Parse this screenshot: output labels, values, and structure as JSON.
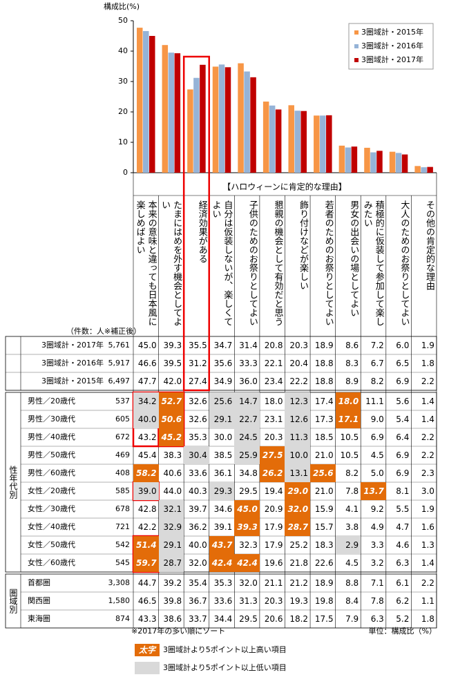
{
  "chart_data": {
    "type": "bar",
    "ylabel": "構成比(%)",
    "categories": [
      "本来の意味と違っても日本風に楽しめばよい",
      "たまにはめを外す機会としてよい",
      "経済効果がある",
      "自分は仮装しないが、楽しくてよい",
      "子供のためのお祭りとしてよい",
      "懇親の機会として有効だと思う",
      "飾り付けなどが楽しい",
      "若者のためのお祭りとしてよい",
      "男女の出会いの場としてよい",
      "積極的に仮装して参加して楽しみたい",
      "大人のためのお祭りとしてよい",
      "その他の肯定的な理由"
    ],
    "series": [
      {
        "name": "3圏域計・2015年",
        "color": "#f79646",
        "values": [
          47.7,
          42,
          27.4,
          34.9,
          36,
          23.4,
          22.2,
          18.8,
          8.9,
          8.2,
          6.9,
          2.2
        ],
        "value_labels": [
          "47.7",
          "42.0",
          "27.4",
          "34.9",
          "36.0",
          "23.4",
          "22.2",
          "18.8",
          "8.9",
          "8.2",
          "6.9",
          "2.2"
        ]
      },
      {
        "name": "3圏域計・2016年",
        "color": "#95b3d7",
        "values": [
          46.6,
          39.5,
          31.2,
          35.6,
          33.3,
          22.1,
          20.4,
          18.8,
          8.3,
          6.7,
          6.5,
          1.8
        ],
        "value_labels": [
          "46.6",
          "39.5",
          "31.2",
          "35.6",
          "33.3",
          "22.1",
          "20.4",
          "18.8",
          "8.3",
          "6.7",
          "6.5",
          "1.8"
        ]
      },
      {
        "name": "3圏域計・2017年",
        "color": "#c00000",
        "values": [
          45,
          39.3,
          35.5,
          34.7,
          31.4,
          20.8,
          20.3,
          18.9,
          8.6,
          7.2,
          6,
          1.9
        ],
        "value_labels": [
          "45.0",
          "39.3",
          "35.5",
          "34.7",
          "31.4",
          "20.8",
          "20.3",
          "18.9",
          "8.6",
          "7.2",
          "6.0",
          "1.9"
        ]
      }
    ],
    "ylim": [
      0,
      50
    ],
    "yticks": [
      0,
      10,
      20,
      30,
      40,
      50
    ],
    "legend": "upper right"
  },
  "table": {
    "title": "【ハロウィーンに肯定的な理由】",
    "count_header": "（件数：人※補正後）",
    "total_counts": [
      "6,497",
      "5,917",
      "5,761"
    ],
    "groups": [
      {
        "label": "性年代別",
        "rows": [
          {
            "label": "男性／20歳代",
            "count": "537",
            "values": [
              "34.2",
              "52.7",
              "32.6",
              "25.6",
              "14.7",
              "18.0",
              "12.3",
              "17.4",
              "18.0",
              "11.1",
              "5.6",
              "1.4"
            ],
            "cell_colors": [
              "#d9d9d9",
              "#e36c09",
              null,
              "#d9d9d9",
              "#d9d9d9",
              null,
              "#d9d9d9",
              null,
              "#e36c09",
              null,
              null,
              null
            ]
          },
          {
            "label": "男性／30歳代",
            "count": "605",
            "values": [
              "40.0",
              "50.6",
              "32.6",
              "29.1",
              "22.7",
              "23.1",
              "12.6",
              "17.3",
              "17.1",
              "9.0",
              "5.4",
              "1.4"
            ],
            "cell_colors": [
              "#d9d9d9",
              "#e36c09",
              null,
              "#d9d9d9",
              "#d9d9d9",
              null,
              "#d9d9d9",
              null,
              "#e36c09",
              null,
              null,
              null
            ]
          },
          {
            "label": "男性／40歳代",
            "count": "672",
            "values": [
              "43.2",
              "45.2",
              "35.3",
              "30.0",
              "24.5",
              "20.3",
              "11.3",
              "18.5",
              "10.5",
              "6.9",
              "6.4",
              "2.2"
            ],
            "cell_colors": [
              null,
              "#e36c09",
              null,
              null,
              "#d9d9d9",
              null,
              "#d9d9d9",
              null,
              null,
              null,
              null,
              null
            ]
          },
          {
            "label": "男性／50歳代",
            "count": "469",
            "values": [
              "45.4",
              "38.3",
              "30.4",
              "38.5",
              "25.9",
              "27.5",
              "10.0",
              "21.0",
              "10.5",
              "4.5",
              "6.9",
              "2.2"
            ],
            "cell_colors": [
              null,
              null,
              "#d9d9d9",
              null,
              "#d9d9d9",
              "#e36c09",
              "#d9d9d9",
              null,
              null,
              null,
              null,
              null
            ]
          },
          {
            "label": "男性／60歳代",
            "count": "408",
            "values": [
              "58.2",
              "40.6",
              "33.6",
              "36.1",
              "34.8",
              "26.2",
              "13.1",
              "25.6",
              "8.2",
              "5.0",
              "6.9",
              "2.3"
            ],
            "cell_colors": [
              "#e36c09",
              null,
              null,
              null,
              null,
              "#e36c09",
              "#d9d9d9",
              "#e36c09",
              null,
              null,
              null,
              null
            ]
          },
          {
            "label": "女性／20歳代",
            "count": "585",
            "values": [
              "39.0",
              "44.0",
              "40.3",
              "29.3",
              "29.5",
              "19.4",
              "29.0",
              "21.0",
              "7.8",
              "13.7",
              "8.1",
              "3.0"
            ],
            "cell_colors": [
              "#d9d9d9",
              null,
              null,
              "#d9d9d9",
              null,
              null,
              "#e36c09",
              null,
              null,
              "#e36c09",
              null,
              null
            ]
          },
          {
            "label": "女性／30歳代",
            "count": "678",
            "values": [
              "42.8",
              "32.1",
              "39.7",
              "34.6",
              "45.0",
              "20.9",
              "32.0",
              "15.9",
              "4.1",
              "9.2",
              "5.5",
              "1.9"
            ],
            "cell_colors": [
              null,
              "#d9d9d9",
              null,
              null,
              "#e36c09",
              null,
              "#e36c09",
              null,
              null,
              null,
              null,
              null
            ]
          },
          {
            "label": "女性／40歳代",
            "count": "721",
            "values": [
              "42.2",
              "32.9",
              "36.2",
              "39.1",
              "39.3",
              "17.9",
              "28.7",
              "15.7",
              "3.8",
              "4.9",
              "4.7",
              "1.6"
            ],
            "cell_colors": [
              null,
              "#d9d9d9",
              null,
              null,
              "#e36c09",
              null,
              "#e36c09",
              null,
              null,
              null,
              null,
              null
            ]
          },
          {
            "label": "女性／50歳代",
            "count": "542",
            "values": [
              "51.4",
              "29.1",
              "40.0",
              "43.7",
              "32.3",
              "17.9",
              "25.2",
              "18.3",
              "2.9",
              "3.3",
              "4.6",
              "1.3"
            ],
            "cell_colors": [
              "#e36c09",
              "#d9d9d9",
              null,
              "#e36c09",
              null,
              null,
              null,
              null,
              "#d9d9d9",
              null,
              null,
              null
            ]
          },
          {
            "label": "女性／60歳代",
            "count": "545",
            "values": [
              "59.7",
              "28.7",
              "32.0",
              "42.4",
              "42.4",
              "19.6",
              "21.8",
              "22.6",
              "4.5",
              "3.2",
              "6.3",
              "1.4"
            ],
            "cell_colors": [
              "#e36c09",
              "#d9d9d9",
              null,
              "#e36c09",
              "#e36c09",
              null,
              null,
              null,
              null,
              null,
              null,
              null
            ]
          }
        ]
      },
      {
        "label": "圏域別",
        "rows": [
          {
            "label": "首都圏",
            "count": "3,308",
            "values": [
              "44.7",
              "39.2",
              "35.4",
              "35.3",
              "32.0",
              "21.1",
              "21.2",
              "18.9",
              "8.8",
              "7.1",
              "6.1",
              "2.2"
            ]
          },
          {
            "label": "関西圏",
            "count": "1,580",
            "values": [
              "46.5",
              "39.8",
              "36.7",
              "33.6",
              "31.3",
              "20.3",
              "19.3",
              "19.8",
              "8.4",
              "7.8",
              "6.2",
              "1.1"
            ]
          },
          {
            "label": "東海圏",
            "count": "874",
            "values": [
              "43.3",
              "38.6",
              "33.7",
              "34.4",
              "29.5",
              "20.6",
              "18.2",
              "17.5",
              "7.9",
              "6.3",
              "5.2",
              "1.8"
            ]
          }
        ]
      }
    ]
  },
  "notes": {
    "sort_note": "※2017年の多い順にソート",
    "unit_note": "単位：構成比（%）",
    "legend": [
      {
        "marker": "太字",
        "color": "#e36c09",
        "text": "3圏域計より5ポイント以上高い項目"
      },
      {
        "color": "#d9d9d9",
        "text": "3圏域計より5ポイント以上低い項目"
      }
    ]
  }
}
